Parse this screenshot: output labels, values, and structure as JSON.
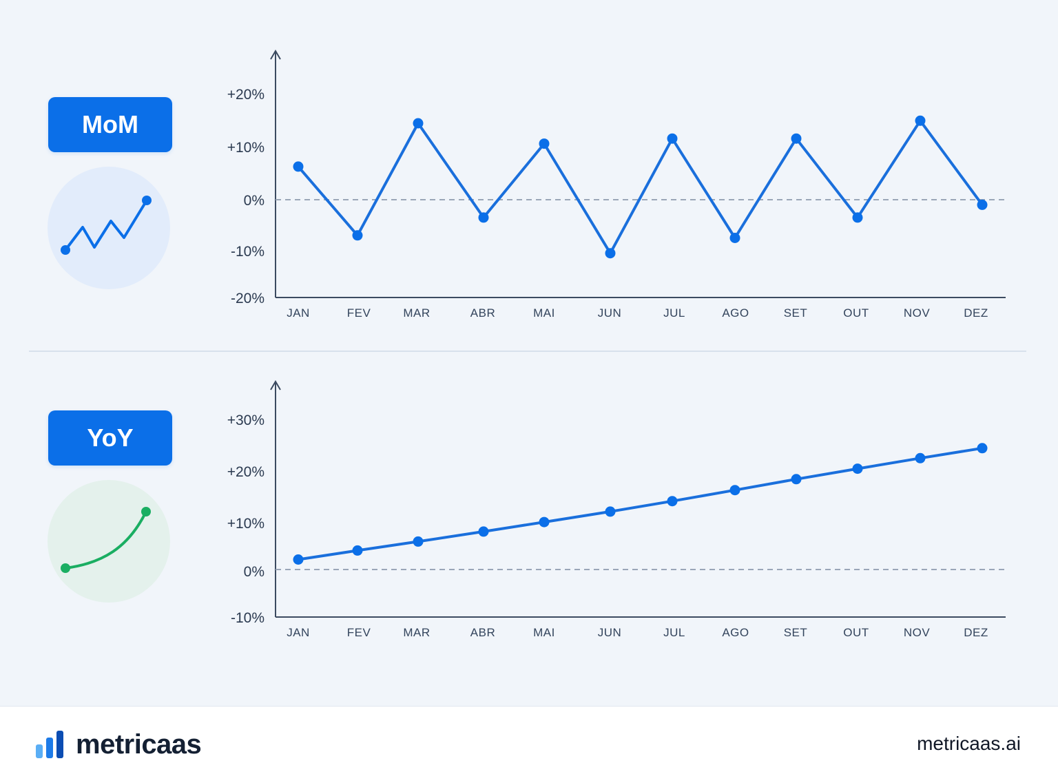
{
  "badges": {
    "mom": "MoM",
    "yoy": "YoY"
  },
  "icons": {
    "mom": "zigzag-trend-icon",
    "yoy": "growth-curve-icon"
  },
  "colors": {
    "primary": "#0b6fe8",
    "line": "#1a6fdc",
    "green": "#1aae62",
    "axis": "#3b4a60",
    "zero": "#9aa6b8"
  },
  "chart_data": [
    {
      "type": "line",
      "categories": [
        "JAN",
        "FEV",
        "MAR",
        "ABR",
        "MAI",
        "JUN",
        "JUL",
        "AGO",
        "SET",
        "OUT",
        "NOV",
        "DEZ"
      ],
      "series": [
        {
          "values": [
            6.5,
            -7.0,
            15.0,
            -3.5,
            11.0,
            -10.5,
            12.0,
            -7.5,
            12.0,
            -3.5,
            15.5,
            -1.0
          ]
        }
      ],
      "yticks": [
        "+20%",
        "+10%",
        "0%",
        "-10%",
        "-20%"
      ],
      "ylim": [
        -20,
        20
      ],
      "zero_line": true
    },
    {
      "type": "line",
      "categories": [
        "JAN",
        "FEV",
        "MAR",
        "ABR",
        "MAI",
        "JUN",
        "JUL",
        "AGO",
        "SET",
        "OUT",
        "NOV",
        "DEZ"
      ],
      "series": [
        {
          "values": [
            2.0,
            3.8,
            5.6,
            7.6,
            9.5,
            11.6,
            13.7,
            15.9,
            18.1,
            20.2,
            22.3,
            24.3
          ]
        }
      ],
      "yticks": [
        "+30%",
        "+20%",
        "+10%",
        "0%",
        "-10%"
      ],
      "ylim": [
        -10,
        30
      ],
      "zero_line": true
    }
  ],
  "footer": {
    "brand": "metricaas",
    "url": "metricaas.ai"
  }
}
